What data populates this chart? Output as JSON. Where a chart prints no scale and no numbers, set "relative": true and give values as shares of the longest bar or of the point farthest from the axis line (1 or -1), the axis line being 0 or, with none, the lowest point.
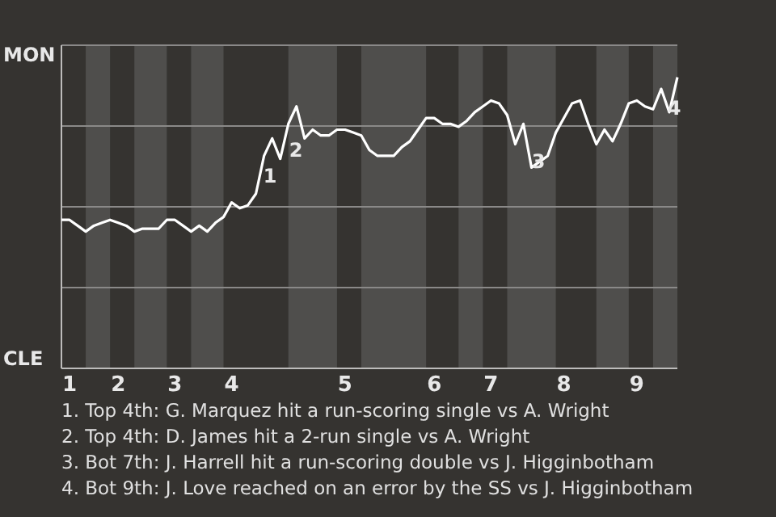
{
  "chart_data": {
    "type": "line",
    "relative": true,
    "categories": [
      null,
      "1",
      null,
      null,
      null,
      null,
      null,
      "2",
      null,
      null,
      null,
      null,
      null,
      null,
      "3",
      null,
      null,
      null,
      null,
      null,
      null,
      "4",
      null,
      null,
      null,
      null,
      null,
      null,
      null,
      null,
      null,
      null,
      null,
      null,
      null,
      "5",
      null,
      null,
      null,
      null,
      null,
      null,
      null,
      null,
      null,
      null,
      "6",
      null,
      null,
      null,
      null,
      null,
      null,
      "7",
      null,
      null,
      null,
      null,
      null,
      null,
      null,
      null,
      "8",
      null,
      null,
      null,
      null,
      null,
      null,
      null,
      null,
      "9",
      null,
      null,
      null,
      null,
      null
    ],
    "series": [
      {
        "color": "#ffffff",
        "values": [
          0.51,
          0.51,
          0.49,
          0.47,
          0.49,
          0.5,
          0.51,
          0.5,
          0.49,
          0.47,
          0.48,
          0.48,
          0.48,
          0.51,
          0.51,
          0.49,
          0.47,
          0.49,
          0.47,
          0.5,
          0.52,
          0.57,
          0.55,
          0.56,
          0.6,
          0.73,
          0.79,
          0.72,
          0.84,
          0.9,
          0.79,
          0.82,
          0.8,
          0.8,
          0.82,
          0.82,
          0.81,
          0.8,
          0.75,
          0.73,
          0.73,
          0.73,
          0.76,
          0.78,
          0.82,
          0.86,
          0.86,
          0.84,
          0.84,
          0.83,
          0.85,
          0.88,
          0.9,
          0.92,
          0.91,
          0.87,
          0.77,
          0.84,
          0.69,
          0.71,
          0.73,
          0.81,
          0.86,
          0.91,
          0.92,
          0.84,
          0.77,
          0.82,
          0.78,
          0.84,
          0.91,
          0.92,
          0.9,
          0.89,
          0.96,
          0.88,
          1
        ]
      }
    ],
    "grid": "y",
    "marker": "none",
    "annotations": [
      "MON",
      "CLE",
      "1",
      "2",
      "3",
      "4",
      "1. Top 4th: G. Marquez hit a run-scoring single vs A. Wright",
      "2. Top 4th: D. James hit a 2-run single vs A. Wright",
      "3. Bot 7th: J. Harrell hit a run-scoring double vs J. Higginbotham",
      "4. Bot 9th: J. Love reached on an error by the SS vs J. Higginbotham"
    ]
  }
}
